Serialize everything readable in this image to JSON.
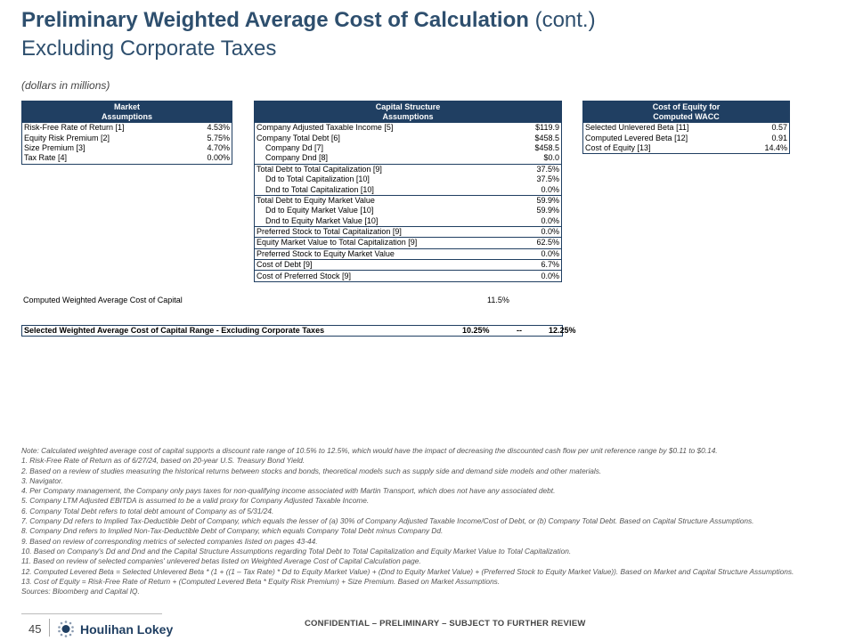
{
  "header": {
    "title_bold": "Preliminary Weighted Average Cost of Calculation",
    "title_suffix": "(cont.)",
    "subtitle": "Excluding Corporate Taxes",
    "units": "(dollars in millions)"
  },
  "market": {
    "header_line1": "Market",
    "header_line2": "Assumptions",
    "rows": [
      {
        "label": "Risk-Free Rate of Return [1]",
        "value": "4.53%"
      },
      {
        "label": "Equity Risk Premium [2]",
        "value": "5.75%"
      },
      {
        "label": "Size Premium [3]",
        "value": "4.70%"
      },
      {
        "label": "Tax Rate [4]",
        "value": "0.00%"
      }
    ]
  },
  "capital": {
    "header_line1": "Capital Structure",
    "header_line2": "Assumptions",
    "rows": [
      {
        "label": "Company Adjusted Taxable Income [5]",
        "value": "$119.9"
      },
      {
        "label": "Company Total Debt [6]",
        "value": "$458.5"
      },
      {
        "label": "Company Dd [7]",
        "value": "$458.5"
      },
      {
        "label": "Company Dnd [8]",
        "value": "$0.0"
      },
      {
        "label": "Total Debt to Total Capitalization [9]",
        "value": "37.5%"
      },
      {
        "label": "Dd to Total Capitalization [10]",
        "value": "37.5%"
      },
      {
        "label": "Dnd to Total Capitalization [10]",
        "value": "0.0%"
      },
      {
        "label": "Total Debt to Equity Market Value",
        "value": "59.9%"
      },
      {
        "label": "Dd to Equity Market Value [10]",
        "value": "59.9%"
      },
      {
        "label": "Dnd to Equity Market Value [10]",
        "value": "0.0%"
      },
      {
        "label": "Preferred Stock to Total Capitalization [9]",
        "value": "0.0%"
      },
      {
        "label": "Equity Market Value to Total Capitalization [9]",
        "value": "62.5%"
      },
      {
        "label": "Preferred Stock to Equity Market Value",
        "value": "0.0%"
      },
      {
        "label": "Cost of Debt [9]",
        "value": "6.7%"
      },
      {
        "label": "Cost of Preferred Stock [9]",
        "value": "0.0%"
      }
    ]
  },
  "equity": {
    "header_line1": "Cost of Equity for",
    "header_line2": "Computed WACC",
    "rows": [
      {
        "label": "Selected Unlevered Beta [11]",
        "value": "0.57"
      },
      {
        "label": "Computed Levered Beta [12]",
        "value": "0.91"
      },
      {
        "label": "Cost of Equity [13]",
        "value": "14.4%"
      }
    ]
  },
  "wacc": {
    "label": "Computed Weighted Average Cost of Capital",
    "value": "11.5%"
  },
  "range": {
    "label": "Selected Weighted Average Cost of Capital Range - Excluding Corporate Taxes",
    "low": "10.25%",
    "sep": "--",
    "high": "12.25%"
  },
  "notes": [
    "Note: Calculated weighted average cost of capital supports a discount rate range of 10.5% to 12.5%, which would have the impact of decreasing the discounted cash flow per unit reference range by $0.11 to $0.14.",
    "1. Risk-Free Rate of Return as of 6/27/24, based on 20-year U.S. Treasury Bond Yield.",
    "2. Based on a review of studies measuring the historical returns between stocks and bonds, theoretical models such as supply side and demand side models and other materials.",
    "3. Navigator.",
    "4. Per Company management, the Company only pays taxes for non-qualifying income associated with Martin Transport, which does not have any associated debt.",
    "5. Company LTM Adjusted EBITDA is assumed to be a valid proxy for Company Adjusted Taxable Income.",
    "6. Company Total Debt refers to total debt amount of Company as of 5/31/24.",
    "7. Company Dd refers to Implied Tax-Deductible Debt of Company, which equals the lesser of (a) 30% of Company Adjusted Taxable Income/Cost of Debt, or (b) Company Total Debt. Based on Capital Structure Assumptions.",
    "8. Company Dnd refers to Implied Non-Tax-Deductible Debt of Company, which equals Company Total Debt minus Company Dd.",
    "9. Based on review of corresponding metrics of selected companies listed on pages 43-44.",
    "10. Based on Company's Dd and Dnd and the Capital Structure Assumptions regarding Total Debt to Total Capitalization and Equity Market Value to Total Capitalization.",
    "11. Based on review of selected companies' unlevered betas listed on Weighted Average Cost of Capital Calculation page.",
    "12. Computed Levered Beta = Selected Unlevered Beta * (1 + ((1 – Tax Rate) * Dd to Equity Market Value) + (Dnd to Equity Market Value) + (Preferred Stock to Equity Market Value)). Based on Market and Capital Structure Assumptions.",
    "13. Cost of Equity = Risk-Free Rate of Return + (Computed Levered Beta * Equity Risk Premium) + Size Premium. Based on Market Assumptions.",
    "Sources: Bloomberg and Capital IQ."
  ],
  "footer": {
    "page_number": "45",
    "brand": "Houlihan Lokey",
    "confidential": "CONFIDENTIAL – PRELIMINARY – SUBJECT TO FURTHER REVIEW"
  }
}
